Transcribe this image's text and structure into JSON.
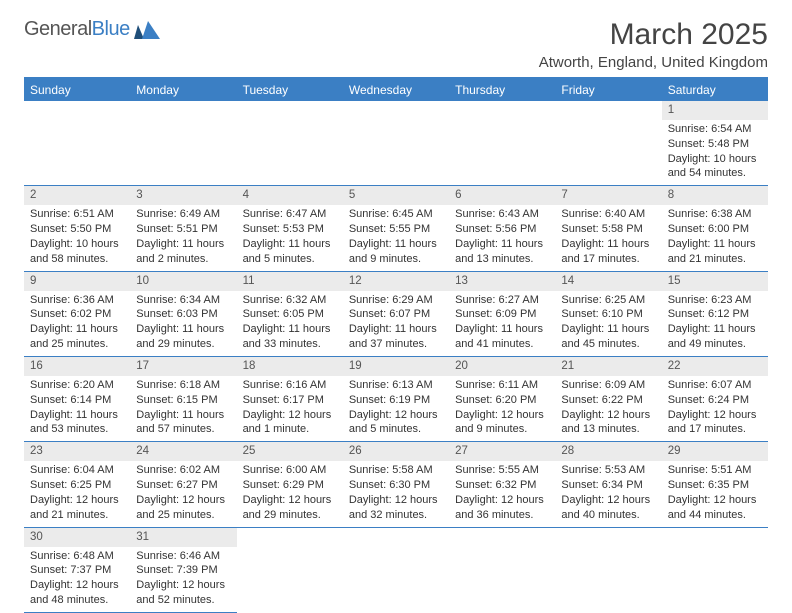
{
  "brand": {
    "name_part1": "General",
    "name_part2": "Blue"
  },
  "title": "March 2025",
  "location": "Atworth, England, United Kingdom",
  "colors": {
    "accent": "#3b7fc4",
    "header_bg": "#3b7fc4",
    "daynum_bg": "#ebebeb",
    "text": "#333333",
    "page_bg": "#ffffff"
  },
  "weekdays": [
    "Sunday",
    "Monday",
    "Tuesday",
    "Wednesday",
    "Thursday",
    "Friday",
    "Saturday"
  ],
  "weeks": [
    [
      null,
      null,
      null,
      null,
      null,
      null,
      {
        "n": "1",
        "sunrise": "Sunrise: 6:54 AM",
        "sunset": "Sunset: 5:48 PM",
        "daylight": "Daylight: 10 hours and 54 minutes."
      }
    ],
    [
      {
        "n": "2",
        "sunrise": "Sunrise: 6:51 AM",
        "sunset": "Sunset: 5:50 PM",
        "daylight": "Daylight: 10 hours and 58 minutes."
      },
      {
        "n": "3",
        "sunrise": "Sunrise: 6:49 AM",
        "sunset": "Sunset: 5:51 PM",
        "daylight": "Daylight: 11 hours and 2 minutes."
      },
      {
        "n": "4",
        "sunrise": "Sunrise: 6:47 AM",
        "sunset": "Sunset: 5:53 PM",
        "daylight": "Daylight: 11 hours and 5 minutes."
      },
      {
        "n": "5",
        "sunrise": "Sunrise: 6:45 AM",
        "sunset": "Sunset: 5:55 PM",
        "daylight": "Daylight: 11 hours and 9 minutes."
      },
      {
        "n": "6",
        "sunrise": "Sunrise: 6:43 AM",
        "sunset": "Sunset: 5:56 PM",
        "daylight": "Daylight: 11 hours and 13 minutes."
      },
      {
        "n": "7",
        "sunrise": "Sunrise: 6:40 AM",
        "sunset": "Sunset: 5:58 PM",
        "daylight": "Daylight: 11 hours and 17 minutes."
      },
      {
        "n": "8",
        "sunrise": "Sunrise: 6:38 AM",
        "sunset": "Sunset: 6:00 PM",
        "daylight": "Daylight: 11 hours and 21 minutes."
      }
    ],
    [
      {
        "n": "9",
        "sunrise": "Sunrise: 6:36 AM",
        "sunset": "Sunset: 6:02 PM",
        "daylight": "Daylight: 11 hours and 25 minutes."
      },
      {
        "n": "10",
        "sunrise": "Sunrise: 6:34 AM",
        "sunset": "Sunset: 6:03 PM",
        "daylight": "Daylight: 11 hours and 29 minutes."
      },
      {
        "n": "11",
        "sunrise": "Sunrise: 6:32 AM",
        "sunset": "Sunset: 6:05 PM",
        "daylight": "Daylight: 11 hours and 33 minutes."
      },
      {
        "n": "12",
        "sunrise": "Sunrise: 6:29 AM",
        "sunset": "Sunset: 6:07 PM",
        "daylight": "Daylight: 11 hours and 37 minutes."
      },
      {
        "n": "13",
        "sunrise": "Sunrise: 6:27 AM",
        "sunset": "Sunset: 6:09 PM",
        "daylight": "Daylight: 11 hours and 41 minutes."
      },
      {
        "n": "14",
        "sunrise": "Sunrise: 6:25 AM",
        "sunset": "Sunset: 6:10 PM",
        "daylight": "Daylight: 11 hours and 45 minutes."
      },
      {
        "n": "15",
        "sunrise": "Sunrise: 6:23 AM",
        "sunset": "Sunset: 6:12 PM",
        "daylight": "Daylight: 11 hours and 49 minutes."
      }
    ],
    [
      {
        "n": "16",
        "sunrise": "Sunrise: 6:20 AM",
        "sunset": "Sunset: 6:14 PM",
        "daylight": "Daylight: 11 hours and 53 minutes."
      },
      {
        "n": "17",
        "sunrise": "Sunrise: 6:18 AM",
        "sunset": "Sunset: 6:15 PM",
        "daylight": "Daylight: 11 hours and 57 minutes."
      },
      {
        "n": "18",
        "sunrise": "Sunrise: 6:16 AM",
        "sunset": "Sunset: 6:17 PM",
        "daylight": "Daylight: 12 hours and 1 minute."
      },
      {
        "n": "19",
        "sunrise": "Sunrise: 6:13 AM",
        "sunset": "Sunset: 6:19 PM",
        "daylight": "Daylight: 12 hours and 5 minutes."
      },
      {
        "n": "20",
        "sunrise": "Sunrise: 6:11 AM",
        "sunset": "Sunset: 6:20 PM",
        "daylight": "Daylight: 12 hours and 9 minutes."
      },
      {
        "n": "21",
        "sunrise": "Sunrise: 6:09 AM",
        "sunset": "Sunset: 6:22 PM",
        "daylight": "Daylight: 12 hours and 13 minutes."
      },
      {
        "n": "22",
        "sunrise": "Sunrise: 6:07 AM",
        "sunset": "Sunset: 6:24 PM",
        "daylight": "Daylight: 12 hours and 17 minutes."
      }
    ],
    [
      {
        "n": "23",
        "sunrise": "Sunrise: 6:04 AM",
        "sunset": "Sunset: 6:25 PM",
        "daylight": "Daylight: 12 hours and 21 minutes."
      },
      {
        "n": "24",
        "sunrise": "Sunrise: 6:02 AM",
        "sunset": "Sunset: 6:27 PM",
        "daylight": "Daylight: 12 hours and 25 minutes."
      },
      {
        "n": "25",
        "sunrise": "Sunrise: 6:00 AM",
        "sunset": "Sunset: 6:29 PM",
        "daylight": "Daylight: 12 hours and 29 minutes."
      },
      {
        "n": "26",
        "sunrise": "Sunrise: 5:58 AM",
        "sunset": "Sunset: 6:30 PM",
        "daylight": "Daylight: 12 hours and 32 minutes."
      },
      {
        "n": "27",
        "sunrise": "Sunrise: 5:55 AM",
        "sunset": "Sunset: 6:32 PM",
        "daylight": "Daylight: 12 hours and 36 minutes."
      },
      {
        "n": "28",
        "sunrise": "Sunrise: 5:53 AM",
        "sunset": "Sunset: 6:34 PM",
        "daylight": "Daylight: 12 hours and 40 minutes."
      },
      {
        "n": "29",
        "sunrise": "Sunrise: 5:51 AM",
        "sunset": "Sunset: 6:35 PM",
        "daylight": "Daylight: 12 hours and 44 minutes."
      }
    ],
    [
      {
        "n": "30",
        "sunrise": "Sunrise: 6:48 AM",
        "sunset": "Sunset: 7:37 PM",
        "daylight": "Daylight: 12 hours and 48 minutes."
      },
      {
        "n": "31",
        "sunrise": "Sunrise: 6:46 AM",
        "sunset": "Sunset: 7:39 PM",
        "daylight": "Daylight: 12 hours and 52 minutes."
      },
      null,
      null,
      null,
      null,
      null
    ]
  ]
}
